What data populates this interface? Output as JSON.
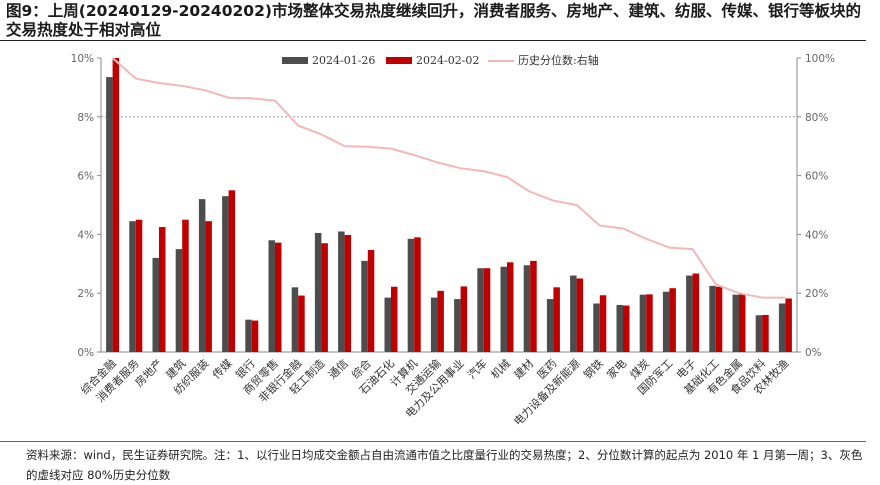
{
  "title": "图9：上周(20240129-20240202)市场整体交易热度继续回升，消费者服务、房地产、建筑、纺服、传媒、银行等板块的交易热度处于相对高位",
  "footer": "资料来源：wind，民生证券研究院。注：1、以行业日均成交金额占自由流通市值之比度量行业的交易热度；2、分位数计算的起点为 2010 年 1 月第一周；3、灰色的虚线对应 80%历史分位数",
  "colors": {
    "series1": "#4d4d4d",
    "series2": "#c00000",
    "line": "#f2b8b8",
    "ref": "#999999"
  },
  "chart_data": {
    "type": "bar",
    "categories": [
      "综合金融",
      "消费者服务",
      "房地产",
      "建筑",
      "纺织服装",
      "传媒",
      "银行",
      "商贸零售",
      "非银行金融",
      "轻工制造",
      "通信",
      "综合",
      "石油石化",
      "计算机",
      "交通运输",
      "电力及公用事业",
      "汽车",
      "机械",
      "建材",
      "医药",
      "电力设备及新能源",
      "钢铁",
      "家电",
      "煤炭",
      "国防军工",
      "电子",
      "基础化工",
      "有色金属",
      "食品饮料",
      "农林牧渔"
    ],
    "series": [
      {
        "name": "2024-01-26",
        "values": [
          9.35,
          4.45,
          3.2,
          3.5,
          5.2,
          5.3,
          1.1,
          3.8,
          2.2,
          4.05,
          4.1,
          3.1,
          1.85,
          3.85,
          1.85,
          1.8,
          2.85,
          2.9,
          2.95,
          1.8,
          2.6,
          1.65,
          1.6,
          1.95,
          2.05,
          2.6,
          2.25,
          1.95,
          1.25,
          1.65
        ]
      },
      {
        "name": "2024-02-02",
        "values": [
          10.0,
          4.5,
          4.25,
          4.5,
          4.45,
          5.5,
          1.07,
          3.72,
          1.92,
          3.7,
          3.98,
          3.47,
          2.22,
          3.9,
          2.08,
          2.23,
          2.85,
          3.05,
          3.1,
          2.2,
          2.5,
          1.93,
          1.58,
          1.96,
          2.17,
          2.67,
          2.22,
          1.96,
          1.26,
          1.82
        ]
      },
      {
        "name": "历史分位数:右轴",
        "axis": "right",
        "values": [
          100,
          93,
          91.5,
          90.5,
          89,
          86.5,
          86.3,
          85.5,
          77,
          74,
          70,
          69.8,
          69.2,
          67,
          64.5,
          62.5,
          61.5,
          59.5,
          54.5,
          51.5,
          50,
          43,
          42,
          38.5,
          35.5,
          35,
          23,
          20,
          18.5,
          18.5
        ]
      }
    ],
    "y_left": {
      "min": 0,
      "max": 10,
      "ticks": [
        "0%",
        "2%",
        "4%",
        "6%",
        "8%",
        "10%"
      ]
    },
    "y_right": {
      "min": 0,
      "max": 100,
      "ticks": [
        "0%",
        "20%",
        "40%",
        "60%",
        "80%",
        "100%"
      ]
    },
    "reference_line": 8,
    "legend": "top-center",
    "grid": false
  }
}
